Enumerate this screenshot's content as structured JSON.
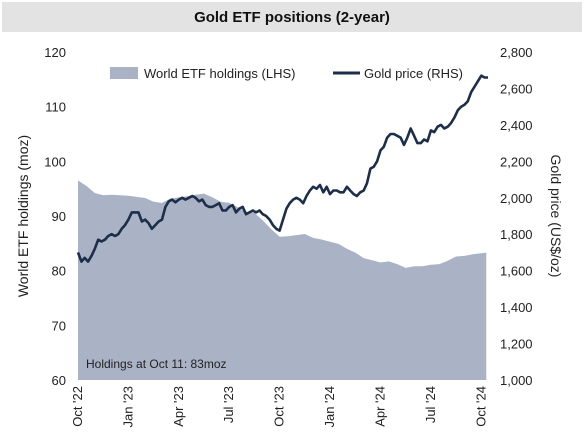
{
  "chart_data": {
    "type": "area",
    "title": "Gold ETF positions (2-year)",
    "ylabel_left": "World ETF holdings (moz)",
    "ylabel_right": "Gold price (US$/oz)",
    "annotation": "Holdings at Oct 11: 83moz",
    "ylim_left": [
      60,
      120
    ],
    "ylim_right": [
      1000,
      2800
    ],
    "yticks_left": [
      "60",
      "70",
      "80",
      "90",
      "100",
      "110",
      "120"
    ],
    "yticks_right": [
      "1,000",
      "1,200",
      "1,400",
      "1,600",
      "1,800",
      "2,000",
      "2,200",
      "2,400",
      "2,600",
      "2,800"
    ],
    "xtick_labels": [
      "Oct '22",
      "Jan '23",
      "Apr '23",
      "Jul '23",
      "Oct '23",
      "Jan '24",
      "Apr '24",
      "Jul '24",
      "Oct '24"
    ],
    "xtick_months": [
      0,
      3,
      6,
      9,
      12,
      15,
      18,
      21,
      24
    ],
    "x_range_months": [
      0,
      24.4
    ],
    "grid": false,
    "legend_position": "top",
    "colors": {
      "holdings": "#a9b3c5",
      "price": "#1c2e4a",
      "title_bar": "#e3e3e3"
    },
    "series": [
      {
        "name": "World ETF holdings (LHS)",
        "axis": "left",
        "kind": "area",
        "x_months": [
          0,
          0.5,
          1,
          1.5,
          2,
          2.5,
          3,
          3.5,
          4,
          4.5,
          5,
          5.5,
          6,
          6.5,
          7,
          7.5,
          8,
          8.5,
          9,
          9.5,
          10,
          10.5,
          11,
          11.5,
          12,
          12.5,
          13,
          13.5,
          14,
          14.5,
          15,
          15.5,
          16,
          16.5,
          17,
          17.5,
          18,
          18.5,
          19,
          19.5,
          20,
          20.5,
          21,
          21.5,
          22,
          22.5,
          23,
          23.5,
          24,
          24.3
        ],
        "values": [
          96.5,
          95.5,
          94.2,
          93.8,
          93.9,
          93.8,
          93.7,
          93.5,
          93.3,
          92.6,
          92.4,
          93.2,
          93.4,
          93.6,
          93.9,
          94.1,
          93.4,
          92.6,
          92.4,
          91.6,
          90.8,
          90.6,
          89.2,
          87.6,
          86.2,
          86.3,
          86.5,
          86.7,
          86.0,
          85.7,
          85.3,
          84.9,
          84.0,
          83.3,
          82.3,
          81.9,
          81.5,
          81.7,
          81.2,
          80.5,
          80.8,
          80.8,
          81.1,
          81.2,
          81.8,
          82.6,
          82.7,
          83.0,
          83.2,
          83.3
        ]
      },
      {
        "name": "Gold price (RHS)",
        "axis": "right",
        "kind": "line",
        "x_months": [
          0,
          0.2,
          0.4,
          0.6,
          0.8,
          1.0,
          1.2,
          1.4,
          1.6,
          1.8,
          2.0,
          2.2,
          2.4,
          2.6,
          2.8,
          3.0,
          3.2,
          3.4,
          3.6,
          3.8,
          4.0,
          4.2,
          4.4,
          4.6,
          4.8,
          5.0,
          5.2,
          5.4,
          5.6,
          5.8,
          6.0,
          6.2,
          6.4,
          6.6,
          6.8,
          7.0,
          7.2,
          7.4,
          7.6,
          7.8,
          8.0,
          8.2,
          8.4,
          8.6,
          8.8,
          9.0,
          9.2,
          9.4,
          9.6,
          9.8,
          10.0,
          10.2,
          10.4,
          10.6,
          10.8,
          11.0,
          11.2,
          11.4,
          11.6,
          11.8,
          12.0,
          12.2,
          12.4,
          12.6,
          12.8,
          13.0,
          13.2,
          13.4,
          13.6,
          13.8,
          14.0,
          14.2,
          14.4,
          14.6,
          14.8,
          15.0,
          15.2,
          15.4,
          15.6,
          15.8,
          16.0,
          16.2,
          16.4,
          16.6,
          16.8,
          17.0,
          17.2,
          17.4,
          17.6,
          17.8,
          18.0,
          18.2,
          18.4,
          18.6,
          18.8,
          19.0,
          19.2,
          19.4,
          19.6,
          19.8,
          20.0,
          20.2,
          20.4,
          20.6,
          20.8,
          21.0,
          21.2,
          21.4,
          21.6,
          21.8,
          22.0,
          22.2,
          22.4,
          22.6,
          22.8,
          23.0,
          23.2,
          23.4,
          23.6,
          23.8,
          24.0,
          24.2,
          24.4
        ],
        "values": [
          1700,
          1650,
          1670,
          1650,
          1680,
          1720,
          1770,
          1760,
          1770,
          1790,
          1800,
          1790,
          1800,
          1830,
          1850,
          1880,
          1920,
          1920,
          1920,
          1870,
          1880,
          1860,
          1830,
          1850,
          1870,
          1880,
          1950,
          1980,
          1990,
          1975,
          1990,
          2000,
          1990,
          2000,
          2010,
          2000,
          1980,
          1990,
          1960,
          1950,
          1950,
          1960,
          1970,
          1930,
          1930,
          1950,
          1960,
          1920,
          1940,
          1950,
          1910,
          1920,
          1930,
          1920,
          1930,
          1910,
          1900,
          1880,
          1850,
          1830,
          1820,
          1880,
          1940,
          1970,
          1990,
          2000,
          1990,
          1970,
          2010,
          2040,
          2060,
          2050,
          2070,
          2030,
          2060,
          2020,
          2040,
          2040,
          2030,
          2030,
          2060,
          2040,
          2020,
          2010,
          2030,
          2040,
          2080,
          2160,
          2170,
          2200,
          2260,
          2280,
          2330,
          2350,
          2350,
          2340,
          2330,
          2290,
          2330,
          2380,
          2340,
          2300,
          2300,
          2320,
          2310,
          2370,
          2360,
          2390,
          2400,
          2380,
          2390,
          2410,
          2440,
          2480,
          2500,
          2510,
          2530,
          2580,
          2610,
          2640,
          2670,
          2660,
          2660
        ]
      }
    ]
  }
}
